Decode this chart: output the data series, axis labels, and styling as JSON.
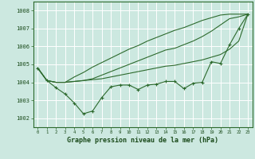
{
  "title": "Graphe pression niveau de la mer (hPa)",
  "background_color": "#cce8e0",
  "plot_bg_color": "#cce8e0",
  "grid_color": "#b0d8d0",
  "line_color": "#2d6a2d",
  "x_ticks": [
    0,
    1,
    2,
    3,
    4,
    5,
    6,
    7,
    8,
    9,
    10,
    11,
    12,
    13,
    14,
    15,
    16,
    17,
    18,
    19,
    20,
    21,
    22,
    23
  ],
  "ylim": [
    1001.5,
    1008.5
  ],
  "yticks": [
    1002,
    1003,
    1004,
    1005,
    1006,
    1007,
    1008
  ],
  "xlim": [
    -0.5,
    23.5
  ],
  "line_wiggly": [
    1004.8,
    1004.1,
    1003.7,
    1003.35,
    1002.85,
    1002.25,
    1002.4,
    1003.15,
    1003.75,
    1003.85,
    1003.85,
    1003.6,
    1003.85,
    1003.9,
    1004.05,
    1004.05,
    1003.65,
    1003.95,
    1004.0,
    1005.15,
    1005.05,
    1006.1,
    1007.0,
    1007.8
  ],
  "line_lower": [
    1004.8,
    1004.1,
    1004.0,
    1004.0,
    1004.05,
    1004.1,
    1004.15,
    1004.2,
    1004.3,
    1004.4,
    1004.5,
    1004.6,
    1004.7,
    1004.8,
    1004.9,
    1004.95,
    1005.05,
    1005.15,
    1005.25,
    1005.4,
    1005.55,
    1005.85,
    1006.3,
    1007.8
  ],
  "line_upper": [
    1004.8,
    1004.1,
    1004.0,
    1004.0,
    1004.05,
    1004.1,
    1004.2,
    1004.4,
    1004.6,
    1004.8,
    1005.0,
    1005.2,
    1005.4,
    1005.6,
    1005.8,
    1005.9,
    1006.1,
    1006.3,
    1006.55,
    1006.85,
    1007.2,
    1007.55,
    1007.65,
    1007.8
  ],
  "line_max": [
    1004.8,
    1004.1,
    1004.0,
    1004.0,
    1004.3,
    1004.55,
    1004.85,
    1005.1,
    1005.35,
    1005.6,
    1005.85,
    1006.05,
    1006.3,
    1006.5,
    1006.7,
    1006.9,
    1007.05,
    1007.25,
    1007.45,
    1007.6,
    1007.75,
    1007.8,
    1007.8,
    1007.8
  ]
}
